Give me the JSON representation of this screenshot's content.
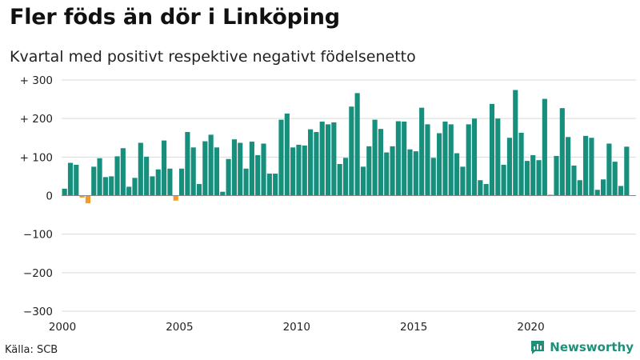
{
  "title": "Fler föds än dör i Linköping",
  "subtitle": "Kvartal med positivt respektive negativt födelsenetto",
  "source": "Källa: SCB",
  "brand": {
    "name": "Newsworthy",
    "icon": "newsworthy-logo-icon"
  },
  "colors": {
    "positive": "#16907d",
    "negative": "#f39c1f",
    "grid": "#d9d9d9",
    "zero": "#888888"
  },
  "chart_data": {
    "type": "bar",
    "title": "Fler föds än dör i Linköping",
    "subtitle": "Kvartal med positivt respektive negativt födelsenetto",
    "xlabel": "",
    "ylabel": "",
    "ylim": [
      -300,
      300
    ],
    "y_ticks": [
      300,
      200,
      100,
      0,
      -100,
      -200,
      -300
    ],
    "y_tick_labels": [
      "+ 300",
      "+ 200",
      "+ 100",
      "0",
      "−100",
      "−200",
      "−300"
    ],
    "x_ticks": [
      2000,
      2005,
      2010,
      2015,
      2020
    ],
    "x_tick_labels": [
      "2000",
      "2005",
      "2010",
      "2015",
      "2020"
    ],
    "grid": true,
    "period_start": 2000,
    "values": [
      18,
      85,
      80,
      -5,
      -20,
      75,
      97,
      48,
      50,
      102,
      123,
      23,
      46,
      137,
      101,
      50,
      68,
      143,
      70,
      -13,
      70,
      165,
      125,
      30,
      141,
      158,
      125,
      10,
      95,
      146,
      137,
      70,
      140,
      105,
      135,
      57,
      57,
      197,
      213,
      125,
      132,
      130,
      172,
      165,
      192,
      185,
      190,
      82,
      98,
      231,
      266,
      75,
      128,
      197,
      173,
      112,
      128,
      193,
      192,
      120,
      115,
      228,
      185,
      98,
      162,
      192,
      185,
      110,
      75,
      185,
      200,
      40,
      30,
      238,
      200,
      80,
      150,
      274,
      163,
      90,
      105,
      92,
      251,
      2,
      103,
      227,
      152,
      78,
      40,
      155,
      150,
      15,
      42,
      135,
      88,
      25,
      127
    ]
  }
}
